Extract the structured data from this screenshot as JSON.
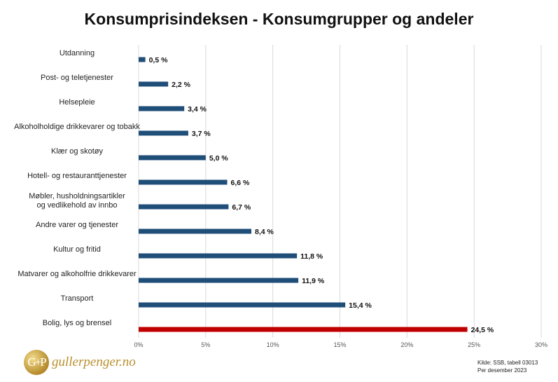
{
  "chart_data": {
    "type": "bar",
    "orientation": "horizontal",
    "title": "Konsumprisindeksen - Konsumgrupper og andeler",
    "categories": [
      "Utdanning",
      "Post- og teletjenester",
      "Helsepleie",
      "Alkoholholdige drikkevarer og tobakk",
      "Klær og skotøy",
      "Hotell- og restauranttjenester",
      "Møbler, husholdningsartikler og vedlikehold av innbo",
      "Andre varer og tjenester",
      "Kultur og fritid",
      "Matvarer og alkoholfrie drikkevarer",
      "Transport",
      "Bolig, lys og brensel"
    ],
    "values": [
      0.5,
      2.2,
      3.4,
      3.7,
      5.0,
      6.6,
      6.7,
      8.4,
      11.8,
      11.9,
      15.4,
      24.5
    ],
    "value_labels": [
      "0,5 %",
      "2,2 %",
      "3,4 %",
      "3,7 %",
      "5,0 %",
      "6,6 %",
      "6,7 %",
      "8,4 %",
      "11,8 %",
      "11,9 %",
      "15,4 %",
      "24,5 %"
    ],
    "xlim": [
      0,
      30
    ],
    "x_ticks": [
      0,
      5,
      10,
      15,
      20,
      25,
      30
    ],
    "x_tick_labels": [
      "0%",
      "5%",
      "10%",
      "15%",
      "20%",
      "25%",
      "30%"
    ],
    "grid": "vertical",
    "colors": {
      "default": "#1f4e79",
      "highlight": "#c00000"
    },
    "highlight_index": 11
  },
  "logo": {
    "mark": "G+P",
    "text": "gullerpenger.no"
  },
  "source": {
    "line1": "Kilde: SSB, tabell 03013",
    "line2": "Per desember 2023"
  }
}
